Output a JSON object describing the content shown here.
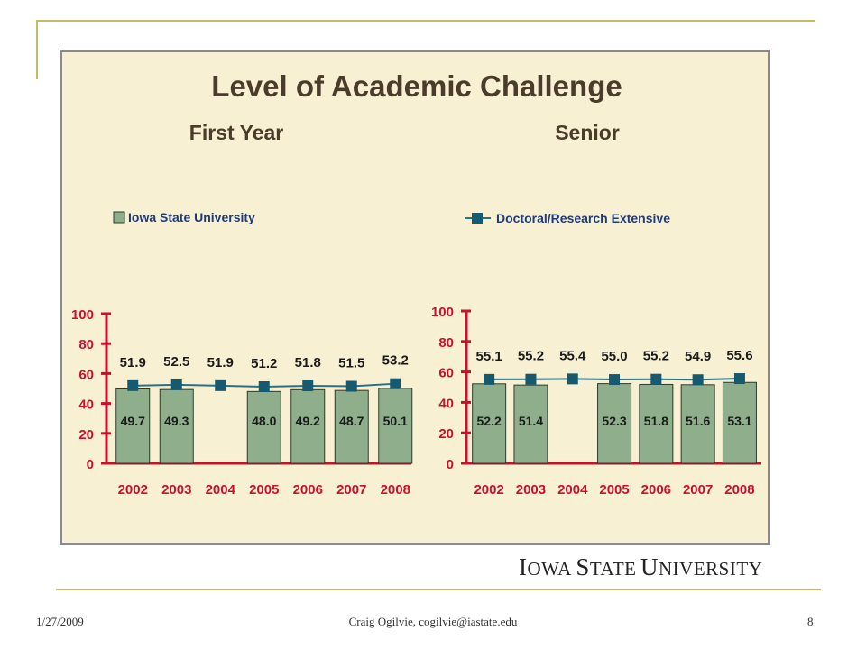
{
  "title": "Level of Academic Challenge",
  "logo_text": "Iowa State University",
  "footer": {
    "date": "1/27/2009",
    "author": "Craig Ogilvie, cogilvie@iastate.edu",
    "page": "8"
  },
  "colors": {
    "bar": "#8fae8c",
    "line": "#2a7085",
    "marker": "#155a6e",
    "axis": "#c8102e",
    "panel": "#f8f0d2"
  },
  "chart_data": [
    {
      "type": "bar",
      "title": "First Year",
      "categories": [
        "2002",
        "2003",
        "2004",
        "2005",
        "2006",
        "2007",
        "2008"
      ],
      "ylim": [
        0,
        100
      ],
      "yticks": [
        0,
        20,
        40,
        60,
        80,
        100
      ],
      "series": [
        {
          "name": "Iowa State University",
          "kind": "bar",
          "values": [
            49.7,
            49.3,
            null,
            48.0,
            49.2,
            48.7,
            50.1
          ],
          "labels": [
            "49.7",
            "49.3",
            "",
            "48.0",
            "49.2",
            "48.7",
            "50.1"
          ]
        },
        {
          "name": "Doctoral/Research Extensive",
          "kind": "line",
          "values": [
            51.9,
            52.5,
            51.9,
            51.2,
            51.8,
            51.5,
            53.2
          ],
          "labels": [
            "51.9",
            "52.5",
            "51.9",
            "51.2",
            "51.8",
            "51.5",
            "53.2"
          ]
        }
      ]
    },
    {
      "type": "bar",
      "title": "Senior",
      "categories": [
        "2002",
        "2003",
        "2004",
        "2005",
        "2006",
        "2007",
        "2008"
      ],
      "ylim": [
        0,
        100
      ],
      "yticks": [
        0,
        20,
        40,
        60,
        80,
        100
      ],
      "series": [
        {
          "name": "Iowa State University",
          "kind": "bar",
          "values": [
            52.2,
            51.4,
            null,
            52.3,
            51.8,
            51.6,
            53.1
          ],
          "labels": [
            "52.2",
            "51.4",
            "",
            "52.3",
            "51.8",
            "51.6",
            "53.1"
          ]
        },
        {
          "name": "Doctoral/Research Extensive",
          "kind": "line",
          "values": [
            55.1,
            55.2,
            55.4,
            55.0,
            55.2,
            54.9,
            55.6
          ],
          "labels": [
            "55.1",
            "55.2",
            "55.4",
            "55.0",
            "55.2",
            "54.9",
            "55.6"
          ]
        }
      ]
    }
  ]
}
